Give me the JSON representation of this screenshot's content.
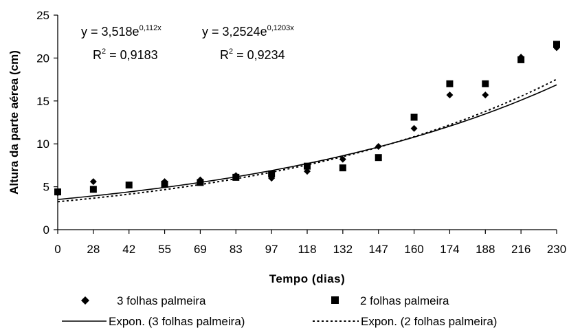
{
  "chart_data": {
    "type": "scatter",
    "categories": [
      "0",
      "28",
      "42",
      "55",
      "69",
      "83",
      "97",
      "118",
      "132",
      "147",
      "160",
      "174",
      "188",
      "216",
      "230"
    ],
    "xlabel": "Tempo (dias)",
    "ylabel": "Altura da parte aérea (cm)",
    "ylim": [
      0,
      25
    ],
    "yticks": [
      "0",
      "5",
      "10",
      "15",
      "20",
      "25"
    ],
    "grid": false,
    "legend_position": "bottom",
    "series": [
      {
        "name": "3 folhas palmeira",
        "marker": "diamond",
        "values": [
          4.3,
          5.6,
          5.2,
          5.6,
          5.8,
          6.3,
          6.0,
          6.8,
          8.2,
          9.7,
          11.8,
          15.7,
          15.7,
          20.1,
          21.2
        ]
      },
      {
        "name": "2 folhas palmeira",
        "marker": "square",
        "values": [
          4.4,
          4.7,
          5.2,
          5.3,
          5.5,
          6.1,
          6.5,
          7.4,
          7.2,
          8.4,
          13.1,
          17.0,
          17.0,
          19.8,
          21.6
        ]
      }
    ],
    "trendlines": [
      {
        "name": "Expon. (3 folhas palmeira)",
        "style": "solid",
        "a": 3.518,
        "b": 0.112,
        "equation_prefix": "y = 3,518e",
        "equation_exp": "0,112x",
        "r2_prefix": "R",
        "r2_sup": "2",
        "r2_value": " = 0,9183"
      },
      {
        "name": "Expon. (2 folhas palmeira)",
        "style": "dotted",
        "a": 3.2524,
        "b": 0.1203,
        "equation_prefix": "y = 3,2524e",
        "equation_exp": "0,1203x",
        "r2_prefix": "R",
        "r2_sup": "2",
        "r2_value": " = 0,9234"
      }
    ],
    "colors": {
      "markers": "#000000",
      "lines": "#000000"
    }
  }
}
